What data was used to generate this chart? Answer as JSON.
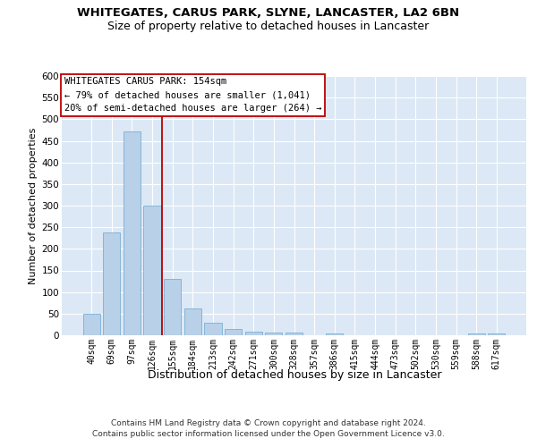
{
  "title1": "WHITEGATES, CARUS PARK, SLYNE, LANCASTER, LA2 6BN",
  "title2": "Size of property relative to detached houses in Lancaster",
  "xlabel": "Distribution of detached houses by size in Lancaster",
  "ylabel": "Number of detached properties",
  "categories": [
    "40sqm",
    "69sqm",
    "97sqm",
    "126sqm",
    "155sqm",
    "184sqm",
    "213sqm",
    "242sqm",
    "271sqm",
    "300sqm",
    "328sqm",
    "357sqm",
    "386sqm",
    "415sqm",
    "444sqm",
    "473sqm",
    "502sqm",
    "530sqm",
    "559sqm",
    "588sqm",
    "617sqm"
  ],
  "values": [
    50,
    238,
    472,
    300,
    130,
    63,
    28,
    15,
    8,
    7,
    6,
    0,
    5,
    0,
    0,
    0,
    0,
    0,
    0,
    5,
    5
  ],
  "bar_color": "#b8d0e8",
  "bar_edge_color": "#7aafd4",
  "vline_x_idx": 3.5,
  "vline_color": "#bb0000",
  "annotation_line1": "WHITEGATES CARUS PARK: 154sqm",
  "annotation_line2": "← 79% of detached houses are smaller (1,041)",
  "annotation_line3": "20% of semi-detached houses are larger (264) →",
  "annotation_box_facecolor": "#ffffff",
  "annotation_box_edgecolor": "#bb0000",
  "ylim_max": 600,
  "ytick_step": 50,
  "bg_color": "#dce8f5",
  "grid_color": "#ffffff",
  "title1_fontsize": 9.5,
  "title2_fontsize": 9,
  "annotation_fontsize": 7.5,
  "ylabel_fontsize": 8,
  "xlabel_fontsize": 9,
  "tick_fontsize": 7,
  "footer1": "Contains HM Land Registry data © Crown copyright and database right 2024.",
  "footer2": "Contains public sector information licensed under the Open Government Licence v3.0.",
  "footer_fontsize": 6.5
}
